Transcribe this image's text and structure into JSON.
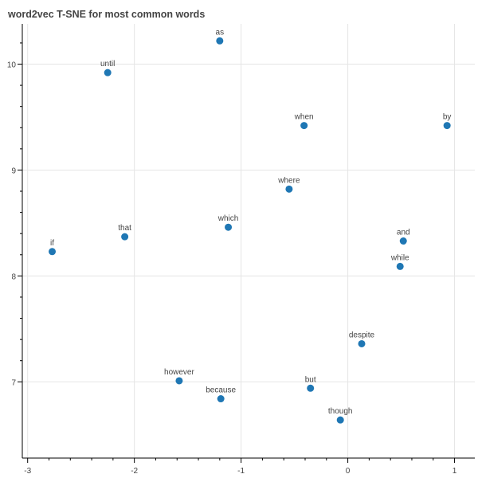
{
  "chart_data": {
    "type": "scatter",
    "title": "word2vec T-SNE for most common words",
    "xlabel": "",
    "ylabel": "",
    "xlim": [
      -3.05,
      1.19
    ],
    "ylim": [
      6.28,
      10.38
    ],
    "x_ticks": [
      -3,
      -2,
      -1,
      0,
      1
    ],
    "y_ticks": [
      7,
      8,
      9,
      10
    ],
    "grid": true,
    "marker_color": "#1f77b4",
    "points": [
      {
        "label": "as",
        "x": -1.2,
        "y": 10.22
      },
      {
        "label": "until",
        "x": -2.25,
        "y": 9.92
      },
      {
        "label": "when",
        "x": -0.41,
        "y": 9.42
      },
      {
        "label": "by",
        "x": 0.93,
        "y": 9.42
      },
      {
        "label": "where",
        "x": -0.55,
        "y": 8.82
      },
      {
        "label": "which",
        "x": -1.12,
        "y": 8.46
      },
      {
        "label": "that",
        "x": -2.09,
        "y": 8.37
      },
      {
        "label": "and",
        "x": 0.52,
        "y": 8.33
      },
      {
        "label": "if",
        "x": -2.77,
        "y": 8.23
      },
      {
        "label": "while",
        "x": 0.49,
        "y": 8.09
      },
      {
        "label": "despite",
        "x": 0.13,
        "y": 7.36
      },
      {
        "label": "however",
        "x": -1.58,
        "y": 7.01
      },
      {
        "label": "but",
        "x": -0.35,
        "y": 6.94
      },
      {
        "label": "because",
        "x": -1.19,
        "y": 6.84
      },
      {
        "label": "though",
        "x": -0.07,
        "y": 6.64
      }
    ]
  }
}
